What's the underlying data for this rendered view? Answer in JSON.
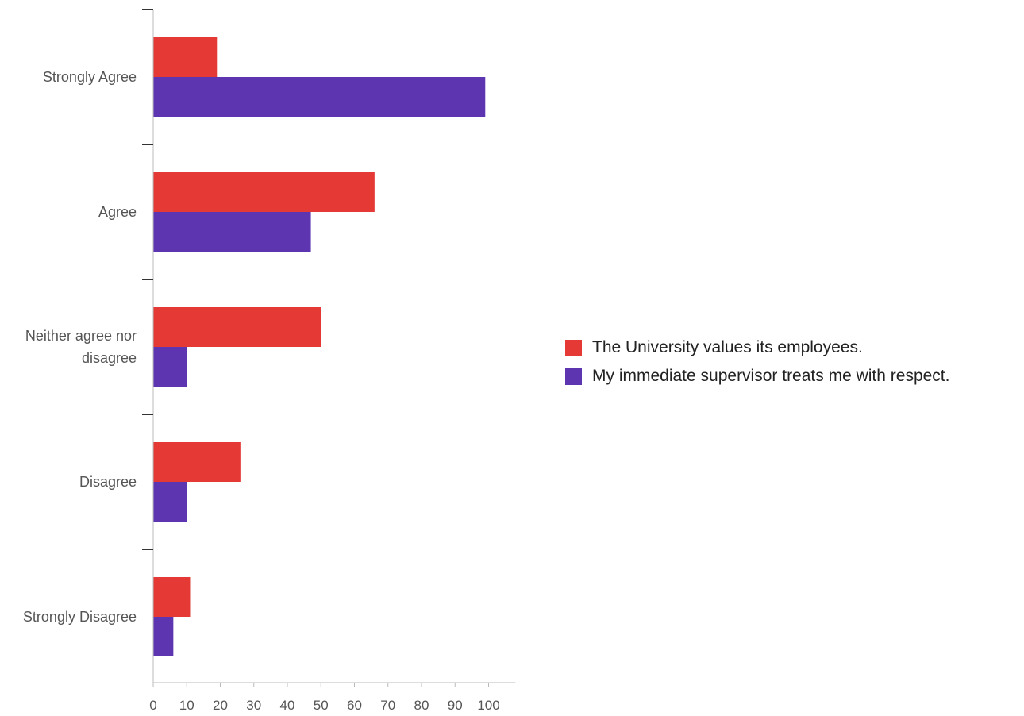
{
  "chart_data": {
    "type": "bar",
    "orientation": "horizontal",
    "categories": [
      "Strongly Agree",
      "Agree",
      "Neither agree nor disagree",
      "Disagree",
      "Strongly Disagree"
    ],
    "category_lines": [
      [
        "Strongly Agree"
      ],
      [
        "Agree"
      ],
      [
        "Neither agree nor",
        "disagree"
      ],
      [
        "Disagree"
      ],
      [
        "Strongly Disagree"
      ]
    ],
    "series": [
      {
        "name": "The University values its employees.",
        "color": "#e53935",
        "values": [
          19,
          66,
          50,
          26,
          11
        ]
      },
      {
        "name": "My immediate supervisor treats me with respect.",
        "color": "#5e35b1",
        "values": [
          99,
          47,
          10,
          10,
          6
        ]
      }
    ],
    "x_ticks": [
      0,
      10,
      20,
      30,
      40,
      50,
      60,
      70,
      80,
      90,
      100
    ],
    "xlim": [
      0,
      108
    ],
    "title": "",
    "xlabel": "",
    "ylabel": "",
    "grid": false,
    "legend_position": "right"
  }
}
